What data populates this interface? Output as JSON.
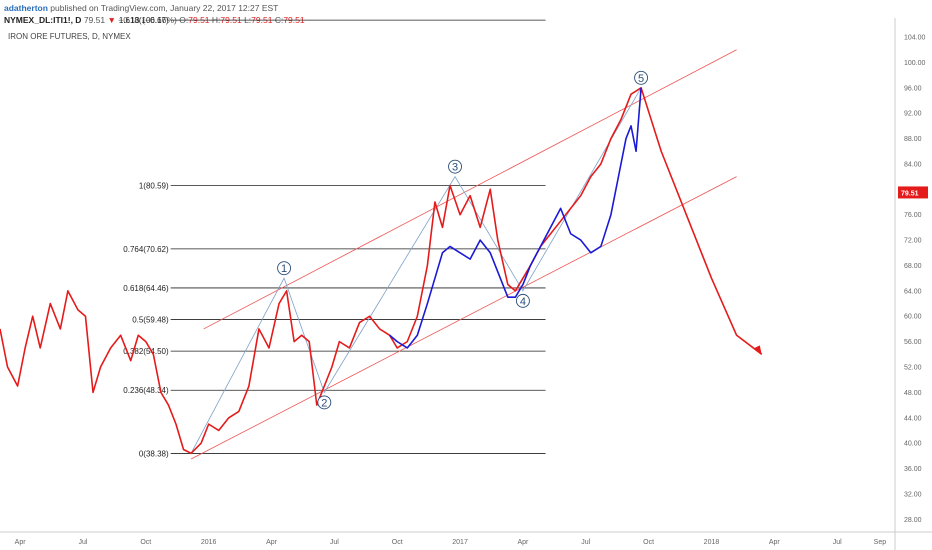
{
  "header": {
    "author": "adatherton",
    "published_text": "published on TradingView.com, January 22, 2017 12:27 EST",
    "symbol": "NYMEX_DL:ITI1!, D",
    "last": "79.51",
    "change": "−0.13 (−0.16%)",
    "o_label": "O:",
    "o_value": "79.51",
    "h_label": "H:",
    "h_value": "79.51",
    "l_label": "L:",
    "l_value": "79.51",
    "c_label": "C:",
    "c_value": "79.51"
  },
  "subtitle": "IRON ORE FUTURES, D, NYMEX",
  "colors": {
    "price_red": "#e51b1b",
    "price_blue": "#1a1ad6",
    "channel": "#ee5555",
    "fib_line": "#222222",
    "wave_line": "#7da1c8",
    "last_price_bg": "#e51b1b",
    "axis_text": "#666666"
  },
  "chart_data": {
    "type": "line",
    "title": "IRON ORE FUTURES, D, NYMEX",
    "ylim": [
      26,
      107
    ],
    "y_ticks": [
      "104.00",
      "100.00",
      "96.00",
      "92.00",
      "88.00",
      "84.00",
      "80.00",
      "76.00",
      "72.00",
      "68.00",
      "64.00",
      "60.00",
      "56.00",
      "52.00",
      "48.00",
      "44.00",
      "40.00",
      "36.00",
      "32.00",
      "28.00"
    ],
    "x_ticks": [
      "Apr",
      "Jul",
      "Oct",
      "2016",
      "Apr",
      "Jul",
      "Oct",
      "2017",
      "Apr",
      "Jul",
      "Oct",
      "2018",
      "Apr",
      "Jul",
      "Sep"
    ],
    "x_range": [
      "2015-03",
      "2018-09"
    ],
    "last_price": "79.51",
    "fib_levels": [
      {
        "label": "1.618(106.67)",
        "value": 106.67
      },
      {
        "label": "1(80.59)",
        "value": 80.59
      },
      {
        "label": "0.764(70.62)",
        "value": 70.62
      },
      {
        "label": "0.618(64.46)",
        "value": 64.46
      },
      {
        "label": "0.5(59.48)",
        "value": 59.48
      },
      {
        "label": "0.382(54.50)",
        "value": 54.5
      },
      {
        "label": "0.236(48.34)",
        "value": 48.34
      },
      {
        "label": "0(38.38)",
        "value": 38.38
      }
    ],
    "wave_labels": [
      "1",
      "2",
      "3",
      "4",
      "5"
    ],
    "series": [
      {
        "points": [
          [
            2015.17,
            58
          ],
          [
            2015.2,
            52
          ],
          [
            2015.24,
            49
          ],
          [
            2015.27,
            55
          ],
          [
            2015.3,
            60
          ],
          [
            2015.33,
            55
          ],
          [
            2015.37,
            62
          ],
          [
            2015.41,
            58
          ],
          [
            2015.44,
            64
          ],
          [
            2015.48,
            61
          ],
          [
            2015.51,
            60
          ],
          [
            2015.54,
            48
          ],
          [
            2015.57,
            52
          ],
          [
            2015.61,
            55
          ],
          [
            2015.65,
            57
          ],
          [
            2015.69,
            53
          ],
          [
            2015.72,
            57
          ],
          [
            2015.75,
            56
          ],
          [
            2015.78,
            54
          ],
          [
            2015.81,
            48
          ],
          [
            2015.84,
            46
          ],
          [
            2015.87,
            43
          ],
          [
            2015.9,
            39
          ],
          [
            2015.93,
            38.4
          ],
          [
            2015.97,
            40
          ],
          [
            2016.0,
            43
          ],
          [
            2016.04,
            42
          ],
          [
            2016.08,
            44
          ],
          [
            2016.12,
            45
          ],
          [
            2016.16,
            49
          ],
          [
            2016.2,
            58
          ],
          [
            2016.24,
            55
          ],
          [
            2016.28,
            62
          ],
          [
            2016.31,
            64
          ],
          [
            2016.34,
            56
          ],
          [
            2016.37,
            57
          ],
          [
            2016.4,
            56
          ],
          [
            2016.43,
            46
          ],
          [
            2016.46,
            49
          ],
          [
            2016.49,
            52
          ],
          [
            2016.52,
            56
          ],
          [
            2016.56,
            55
          ],
          [
            2016.6,
            59
          ],
          [
            2016.64,
            60
          ],
          [
            2016.68,
            58
          ],
          [
            2016.72,
            57
          ],
          [
            2016.75,
            55
          ],
          [
            2016.79,
            56
          ],
          [
            2016.83,
            60
          ],
          [
            2016.87,
            68
          ],
          [
            2016.9,
            78
          ],
          [
            2016.93,
            74
          ],
          [
            2016.96,
            80.6
          ],
          [
            2017.0,
            76
          ],
          [
            2017.04,
            79
          ],
          [
            2017.08,
            74
          ],
          [
            2017.12,
            80
          ],
          [
            2017.15,
            72
          ],
          [
            2017.19,
            65
          ],
          [
            2017.22,
            64
          ],
          [
            2017.25,
            66
          ],
          [
            2017.28,
            68
          ],
          [
            2017.32,
            71
          ],
          [
            2017.36,
            73
          ],
          [
            2017.4,
            75
          ],
          [
            2017.44,
            77
          ],
          [
            2017.48,
            79
          ],
          [
            2017.52,
            82
          ],
          [
            2017.56,
            84
          ],
          [
            2017.6,
            88
          ],
          [
            2017.64,
            91
          ],
          [
            2017.68,
            95
          ],
          [
            2017.72,
            96
          ],
          [
            2017.8,
            86
          ],
          [
            2017.9,
            76
          ],
          [
            2018.0,
            66
          ],
          [
            2018.1,
            57
          ],
          [
            2018.2,
            54
          ]
        ]
      },
      {
        "points": [
          [
            2016.72,
            57
          ],
          [
            2016.75,
            56
          ],
          [
            2016.79,
            55
          ],
          [
            2016.83,
            57
          ],
          [
            2016.87,
            62
          ],
          [
            2016.9,
            66
          ],
          [
            2016.93,
            70
          ],
          [
            2016.96,
            71
          ],
          [
            2017.0,
            70
          ],
          [
            2017.04,
            69
          ],
          [
            2017.08,
            72
          ],
          [
            2017.12,
            70
          ],
          [
            2017.15,
            67
          ],
          [
            2017.19,
            63
          ],
          [
            2017.22,
            63
          ],
          [
            2017.25,
            65
          ],
          [
            2017.28,
            68
          ],
          [
            2017.32,
            71
          ],
          [
            2017.36,
            74
          ],
          [
            2017.4,
            77
          ],
          [
            2017.44,
            73
          ],
          [
            2017.48,
            72
          ],
          [
            2017.52,
            70
          ],
          [
            2017.56,
            71
          ],
          [
            2017.6,
            76
          ],
          [
            2017.63,
            82
          ],
          [
            2017.66,
            88
          ],
          [
            2017.68,
            90
          ],
          [
            2017.7,
            86
          ],
          [
            2017.72,
            96
          ]
        ]
      }
    ]
  }
}
